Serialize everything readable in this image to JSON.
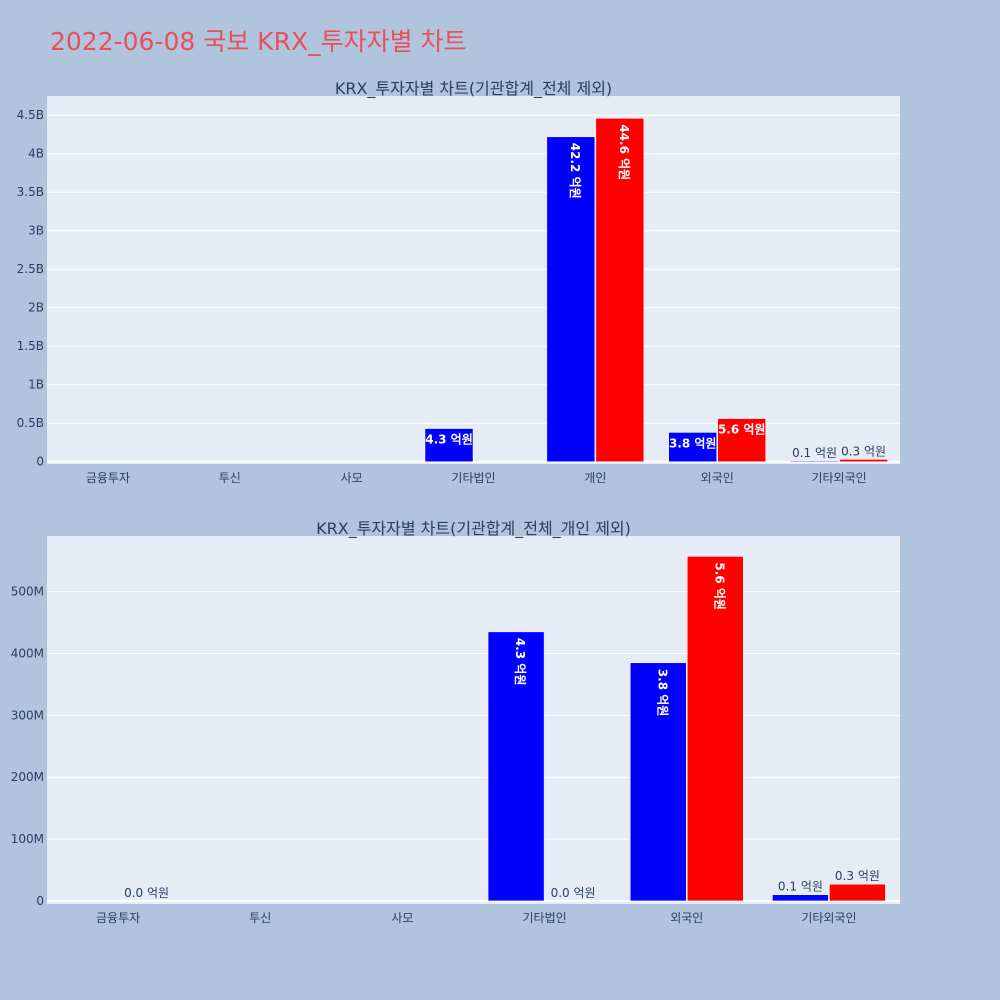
{
  "title": "2022-06-08 국보 KRX_투자자별 차트",
  "colors": {
    "series1": "#0000ff",
    "series2": "#ff0000",
    "plot_bg": "#e5ecf6",
    "page_bg": "#b0c4de",
    "title": "#e8505b"
  },
  "chart_data": [
    {
      "type": "bar",
      "title": "KRX_투자자별 차트(기관합계_전체 제외)",
      "categories": [
        "금융투자",
        "투신",
        "사모",
        "기타법인",
        "개인",
        "외국인",
        "기타외국인"
      ],
      "ylim": [
        -30000000,
        4750000000
      ],
      "yticks": [
        0,
        500000000,
        1000000000,
        1500000000,
        2000000000,
        2500000000,
        3000000000,
        3500000000,
        4000000000,
        4500000000
      ],
      "ytick_labels": [
        "0",
        "0.5B",
        "1B",
        "1.5B",
        "2B",
        "2.5B",
        "3B",
        "3.5B",
        "4B",
        "4.5B"
      ],
      "grid": true,
      "series": [
        {
          "values": [
            0,
            0,
            0,
            430000000,
            4220000000,
            380000000,
            10000000
          ],
          "labels": [
            "",
            "",
            "",
            "4.3 억원",
            "42.2 억원",
            "3.8 억원",
            "0.1 억원"
          ]
        },
        {
          "values": [
            0,
            0,
            0,
            0,
            4460000000,
            560000000,
            30000000
          ],
          "labels": [
            "",
            "",
            "",
            "",
            "44.6 억원",
            "5.6 억원",
            "0.3 억원"
          ]
        }
      ]
    },
    {
      "type": "bar",
      "title": "KRX_투자자별 차트(기관합계_전체_개인 제외)",
      "categories": [
        "금융투자",
        "투신",
        "사모",
        "기타법인",
        "외국인",
        "기타외국인"
      ],
      "ylim": [
        -5000000,
        590000000
      ],
      "yticks": [
        0,
        100000000,
        200000000,
        300000000,
        400000000,
        500000000
      ],
      "ytick_labels": [
        "0",
        "100M",
        "200M",
        "300M",
        "400M",
        "500M"
      ],
      "grid": true,
      "series": [
        {
          "values": [
            0,
            0,
            0,
            435000000,
            385000000,
            10000000
          ],
          "labels": [
            "",
            "",
            "",
            "4.3 억원",
            "3.8 억원",
            "0.1 억원"
          ]
        },
        {
          "values": [
            0,
            0,
            0,
            0,
            557000000,
            27000000
          ],
          "labels": [
            "0.0 억원",
            "",
            "",
            "0.0 억원",
            "5.6 억원",
            "0.3 억원"
          ]
        }
      ]
    }
  ]
}
